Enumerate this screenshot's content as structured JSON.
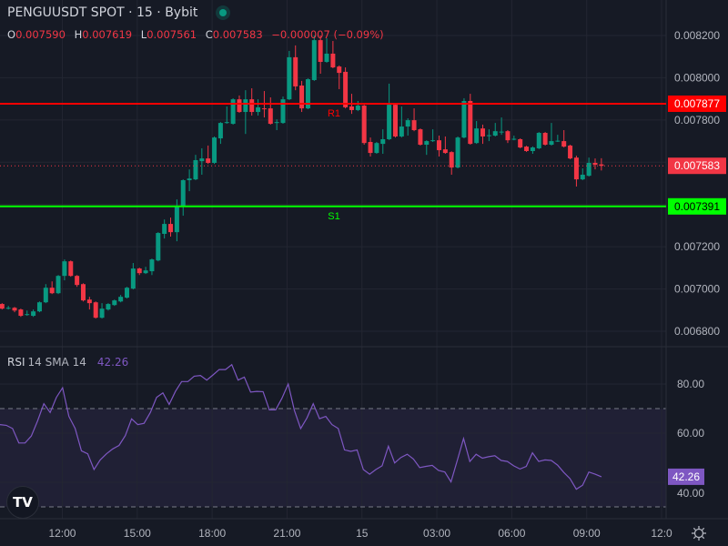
{
  "header": {
    "title": "PENGUUSDT SPOT · 15 · Bybit",
    "status_icon": "live-dot-icon",
    "ohlc": {
      "o_label": "O",
      "o": "0.007590",
      "h_label": "H",
      "h": "0.007619",
      "l_label": "L",
      "l": "0.007561",
      "c_label": "C",
      "c": "0.007583",
      "change": "−0.000007 (−0.09%)"
    }
  },
  "rsi_legend": {
    "name": "RSI",
    "params": "14 SMA 14",
    "value": "42.26"
  },
  "colors": {
    "background": "#161a25",
    "up": "#089981",
    "down": "#f23645",
    "resistance": "#ff0000",
    "support": "#00ff00",
    "rsi": "#7e57c2",
    "grid": "#232632"
  },
  "chart_data": [
    {
      "type": "candlestick",
      "interval": "15",
      "ylim": [
        0.00675,
        0.00824
      ],
      "yticks": [
        "0.008200",
        "0.008000",
        "0.007800",
        "0.007200",
        "0.007000",
        "0.006800"
      ],
      "ytick_values": [
        0.0082,
        0.008,
        0.0078,
        0.0072,
        0.007,
        0.0068
      ],
      "xticks": [
        "12:00",
        "15:00",
        "18:00",
        "21:00",
        "15",
        "03:00",
        "06:00",
        "09:00",
        "12:0"
      ],
      "xtick_candle_index": [
        10,
        22,
        34,
        46,
        58,
        70,
        82,
        94,
        106
      ],
      "grid": true,
      "levels": [
        {
          "label": "R1",
          "value": 0.007877,
          "tag": "0.007877",
          "color": "#ff0000"
        },
        {
          "label": "S1",
          "value": 0.007391,
          "tag": "0.007391",
          "color": "#00ff00"
        }
      ],
      "last_price": {
        "value": 0.007583,
        "tag": "0.007583"
      },
      "candles_ohlc": [
        [
          0.006929,
          0.006933,
          0.006903,
          0.006907
        ],
        [
          0.006907,
          0.00692,
          0.006903,
          0.006911
        ],
        [
          0.006911,
          0.006915,
          0.00689,
          0.006898
        ],
        [
          0.006903,
          0.006907,
          0.006868,
          0.006873
        ],
        [
          0.006877,
          0.006898,
          0.006873,
          0.006881
        ],
        [
          0.006873,
          0.006903,
          0.006868,
          0.006894
        ],
        [
          0.006894,
          0.006941,
          0.00689,
          0.006937
        ],
        [
          0.006937,
          0.007023,
          0.006933,
          0.007006
        ],
        [
          0.007006,
          0.007036,
          0.006976,
          0.00698
        ],
        [
          0.00698,
          0.007066,
          0.006976,
          0.007062
        ],
        [
          0.007062,
          0.00714,
          0.007041,
          0.007131
        ],
        [
          0.007131,
          0.007135,
          0.007058,
          0.007062
        ],
        [
          0.007062,
          0.007066,
          0.00701,
          0.007019
        ],
        [
          0.007023,
          0.007027,
          0.006941,
          0.006946
        ],
        [
          0.00695,
          0.006963,
          0.006903,
          0.006933
        ],
        [
          0.006937,
          0.006941,
          0.00686,
          0.006864
        ],
        [
          0.006864,
          0.006933,
          0.00686,
          0.006907
        ],
        [
          0.006903,
          0.006933,
          0.006898,
          0.006929
        ],
        [
          0.006924,
          0.00695,
          0.00692,
          0.006946
        ],
        [
          0.006941,
          0.006972,
          0.006937,
          0.006963
        ],
        [
          0.006959,
          0.00701,
          0.006955,
          0.007006
        ],
        [
          0.007002,
          0.007123,
          0.006998,
          0.007097
        ],
        [
          0.007097,
          0.007101,
          0.007066,
          0.007075
        ],
        [
          0.007075,
          0.007105,
          0.007071,
          0.007088
        ],
        [
          0.007084,
          0.007144,
          0.007066,
          0.00714
        ],
        [
          0.007135,
          0.007269,
          0.007131,
          0.007265
        ],
        [
          0.007261,
          0.007329,
          0.007239,
          0.007308
        ],
        [
          0.007308,
          0.007338,
          0.007248,
          0.007269
        ],
        [
          0.007269,
          0.007424,
          0.007226,
          0.007394
        ],
        [
          0.007394,
          0.007519,
          0.007347,
          0.007515
        ],
        [
          0.007515,
          0.007566,
          0.007463,
          0.007523
        ],
        [
          0.007519,
          0.007635,
          0.007515,
          0.00761
        ],
        [
          0.007605,
          0.007666,
          0.007541,
          0.007618
        ],
        [
          0.007618,
          0.007679,
          0.007592,
          0.007597
        ],
        [
          0.007597,
          0.007722,
          0.007592,
          0.007717
        ],
        [
          0.007713,
          0.00779,
          0.007687,
          0.007786
        ],
        [
          0.007786,
          0.007864,
          0.007782,
          0.00779
        ],
        [
          0.007782,
          0.007903,
          0.007778,
          0.007898
        ],
        [
          0.007898,
          0.007916,
          0.007834,
          0.007838
        ],
        [
          0.007838,
          0.007941,
          0.007734,
          0.007898
        ],
        [
          0.007898,
          0.00795,
          0.007821,
          0.007838
        ],
        [
          0.007838,
          0.007898,
          0.007821,
          0.00786
        ],
        [
          0.007855,
          0.007937,
          0.007812,
          0.007851
        ],
        [
          0.007855,
          0.007907,
          0.007778,
          0.007782
        ],
        [
          0.007786,
          0.007803,
          0.007752,
          0.00779
        ],
        [
          0.007786,
          0.007911,
          0.007782,
          0.007898
        ],
        [
          0.007898,
          0.008127,
          0.007894,
          0.008097
        ],
        [
          0.008097,
          0.008153,
          0.007941,
          0.007959
        ],
        [
          0.007963,
          0.007985,
          0.007838,
          0.007855
        ],
        [
          0.007855,
          0.007997,
          0.007851,
          0.007993
        ],
        [
          0.007989,
          0.0082,
          0.007985,
          0.008178
        ],
        [
          0.008178,
          0.0082,
          0.008019,
          0.008075
        ],
        [
          0.008075,
          0.008187,
          0.008071,
          0.008114
        ],
        [
          0.008114,
          0.008174,
          0.008045,
          0.008049
        ],
        [
          0.008053,
          0.008058,
          0.007946,
          0.008023
        ],
        [
          0.008028,
          0.008049,
          0.007855,
          0.00786
        ],
        [
          0.007864,
          0.007924,
          0.007829,
          0.007847
        ],
        [
          0.007847,
          0.00789,
          0.007842,
          0.007868
        ],
        [
          0.007868,
          0.007872,
          0.007683,
          0.007691
        ],
        [
          0.007696,
          0.007717,
          0.007627,
          0.007644
        ],
        [
          0.007644,
          0.007696,
          0.00764,
          0.007691
        ],
        [
          0.007687,
          0.007756,
          0.00764,
          0.007709
        ],
        [
          0.007709,
          0.007972,
          0.007705,
          0.007872
        ],
        [
          0.007872,
          0.007877,
          0.007717,
          0.007722
        ],
        [
          0.007722,
          0.007864,
          0.007717,
          0.007769
        ],
        [
          0.007769,
          0.007808,
          0.007726,
          0.007799
        ],
        [
          0.007799,
          0.007855,
          0.007747,
          0.007752
        ],
        [
          0.007756,
          0.00776,
          0.007679,
          0.007683
        ],
        [
          0.007683,
          0.007704,
          0.007635,
          0.0077
        ],
        [
          0.0077,
          0.007756,
          0.007696,
          0.007704
        ],
        [
          0.007704,
          0.007726,
          0.007627,
          0.007657
        ],
        [
          0.007661,
          0.007722,
          0.00764,
          0.007644
        ],
        [
          0.007648,
          0.007652,
          0.007541,
          0.007575
        ],
        [
          0.007575,
          0.007722,
          0.007571,
          0.007717
        ],
        [
          0.007717,
          0.007903,
          0.007713,
          0.00789
        ],
        [
          0.00789,
          0.007924,
          0.007683,
          0.007687
        ],
        [
          0.007691,
          0.007795,
          0.007687,
          0.00776
        ],
        [
          0.00776,
          0.007778,
          0.007687,
          0.007722
        ],
        [
          0.007724,
          0.007756,
          0.0077,
          0.007728
        ],
        [
          0.007726,
          0.007786,
          0.007722,
          0.007747
        ],
        [
          0.007743,
          0.007812,
          0.00773,
          0.007745
        ],
        [
          0.007747,
          0.007752,
          0.007691,
          0.007704
        ],
        [
          0.007709,
          0.007726,
          0.007704,
          0.007711
        ],
        [
          0.007709,
          0.007713,
          0.007666,
          0.00767
        ],
        [
          0.007674,
          0.007678,
          0.007649,
          0.007653
        ],
        [
          0.007653,
          0.007675,
          0.00764,
          0.00767
        ],
        [
          0.007666,
          0.007743,
          0.007662,
          0.007739
        ],
        [
          0.007739,
          0.007743,
          0.007679,
          0.007683
        ],
        [
          0.007683,
          0.007786,
          0.007679,
          0.0077
        ],
        [
          0.0077,
          0.00773,
          0.007696,
          0.007702
        ],
        [
          0.0077,
          0.007752,
          0.00767,
          0.007674
        ],
        [
          0.007679,
          0.007683,
          0.007614,
          0.007618
        ],
        [
          0.007622,
          0.007631,
          0.007485,
          0.007519
        ],
        [
          0.007519,
          0.007571,
          0.007515,
          0.007541
        ],
        [
          0.007536,
          0.007622,
          0.007532,
          0.007597
        ],
        [
          0.007597,
          0.007618,
          0.007566,
          0.007588
        ],
        [
          0.00759,
          0.007619,
          0.007561,
          0.007583
        ]
      ]
    },
    {
      "type": "line",
      "name": "RSI 14 SMA 14",
      "ylim": [
        24,
        92
      ],
      "yticks": [
        "80.00",
        "60.00",
        "40.00"
      ],
      "ytick_values": [
        80,
        60,
        40
      ],
      "band": [
        30,
        70
      ],
      "last_value": "42.26",
      "values": [
        63.5,
        63.2,
        61.9,
        56,
        56,
        58.8,
        65,
        72,
        68.4,
        74.6,
        78.5,
        66.8,
        61.9,
        52.8,
        51.6,
        45.2,
        49.1,
        51.6,
        53.6,
        55,
        59,
        65.8,
        63.5,
        64,
        68.4,
        74.6,
        76.4,
        71.7,
        77,
        81,
        81,
        83.2,
        83.5,
        81.6,
        83.7,
        85.9,
        85.9,
        87.9,
        81.6,
        82.8,
        76.7,
        77,
        76.9,
        69.5,
        69.5,
        74.2,
        80,
        69.3,
        61.9,
        66.2,
        72,
        65.9,
        66.8,
        63.5,
        61.9,
        53.2,
        52.6,
        53.2,
        45.2,
        43.3,
        45.2,
        46.7,
        54.7,
        47.9,
        50.1,
        51.4,
        49.5,
        46,
        46.5,
        46.9,
        44.8,
        44.2,
        40.2,
        48.9,
        57.8,
        48.5,
        51.4,
        49.8,
        50.4,
        50.8,
        48.9,
        48.5,
        46.7,
        45.4,
        46.5,
        52,
        48.5,
        49.1,
        48.9,
        47,
        44,
        41.5,
        37.2,
        38.8,
        44.2,
        43.3,
        42.26
      ]
    }
  ]
}
